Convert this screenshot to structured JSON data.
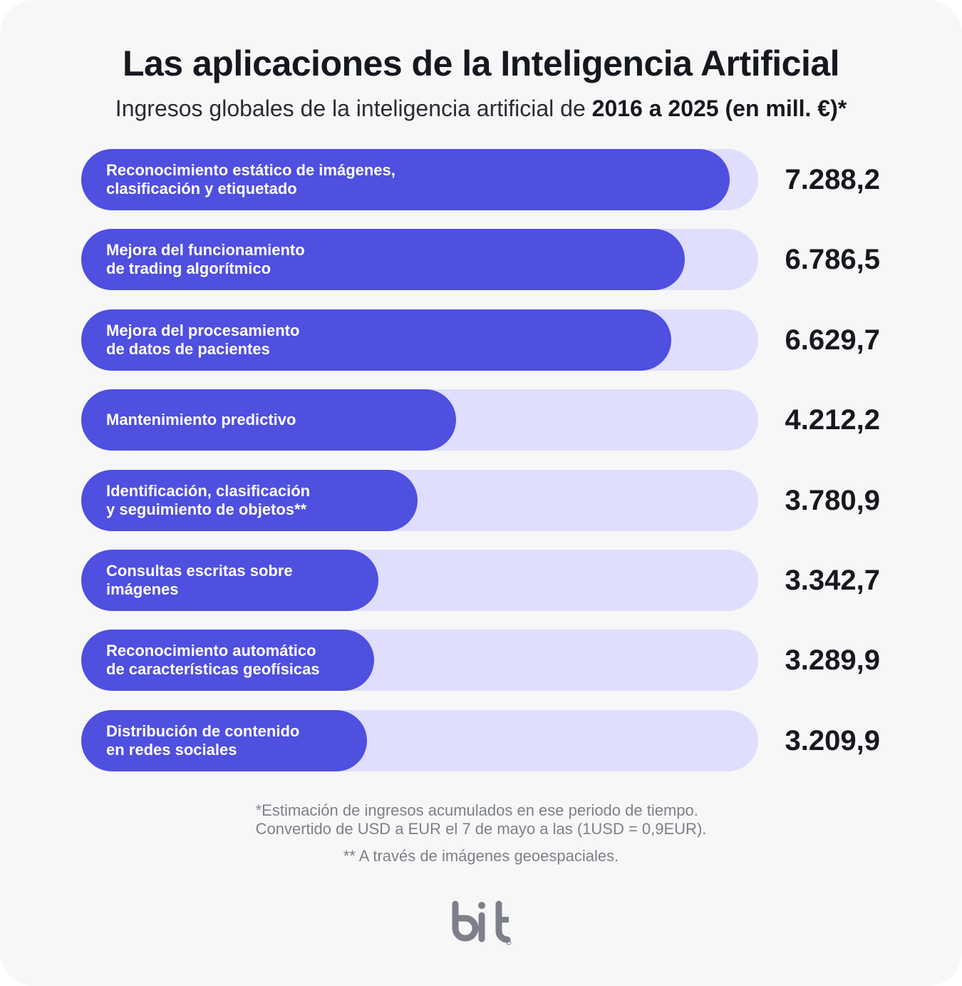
{
  "title": "Las aplicaciones de la Inteligencia Artificial",
  "subtitle": {
    "regular": "Ingresos globales de la inteligencia artificial de ",
    "bold": "2016 a 2025 (en mill. €)*"
  },
  "chart_data": {
    "type": "bar",
    "orientation": "horizontal",
    "categories": [
      "Reconocimiento estático de imágenes,\nclasificación y etiquetado",
      "Mejora del funcionamiento\nde trading algorítmico",
      "Mejora del procesamiento\nde datos de pacientes",
      "Mantenimiento predictivo",
      "Identificación, clasificación\ny seguimiento de objetos**",
      "Consultas escritas sobre\nimágenes",
      "Reconocimiento automático\nde características geofísicas",
      "Distribución de contenido\nen redes sociales"
    ],
    "values": [
      7288.2,
      6786.5,
      6629.7,
      4212.2,
      3780.9,
      3342.7,
      3289.9,
      3209.9
    ],
    "value_labels": [
      "7.288,2",
      "6.786,5",
      "6.629,7",
      "4.212,2",
      "3.780,9",
      "3.342,7",
      "3.289,9",
      "3.209,9"
    ],
    "colors": {
      "bar": "#4f4fe0",
      "track": "#dfdefd"
    }
  },
  "footnotes": {
    "line1": "*Estimación de ingresos acumulados en ese periodo de tiempo.",
    "line2": "Convertido de USD a EUR el 7 de mayo a las  (1USD = 0,9EUR).",
    "line3": "** A través de imágenes geoespaciales."
  },
  "logo": {
    "text": "bit",
    "color": "#7d808a"
  }
}
